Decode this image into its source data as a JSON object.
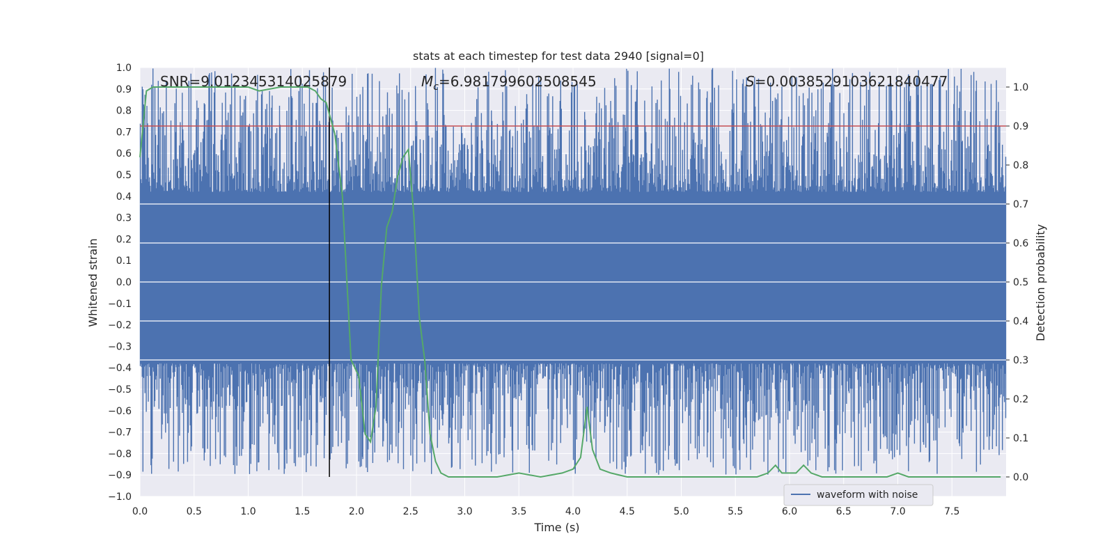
{
  "chart_data": {
    "type": "line",
    "title": "stats at each timestep for test data 2940 [signal=0]",
    "xlabel": "Time (s)",
    "ylabel": "Whitened strain",
    "y2label": "Detection probability",
    "xlim": [
      0.0,
      8.0
    ],
    "ylim": [
      -1.0,
      1.0
    ],
    "y2lim": [
      -0.05,
      1.05
    ],
    "x_ticks": [
      "0.0",
      "0.5",
      "1.0",
      "1.5",
      "2.0",
      "2.5",
      "3.0",
      "3.5",
      "4.0",
      "4.5",
      "5.0",
      "5.5",
      "6.0",
      "6.5",
      "7.0",
      "7.5"
    ],
    "y_ticks": [
      "1.0",
      "0.9",
      "0.8",
      "0.7",
      "0.6",
      "0.5",
      "0.4",
      "0.3",
      "0.2",
      "0.1",
      "0.0",
      "−0.1",
      "−0.2",
      "−0.3",
      "−0.4",
      "−0.5",
      "−0.6",
      "−0.7",
      "−0.8",
      "−0.9",
      "−1.0"
    ],
    "y2_ticks": [
      "1.0",
      "0.9",
      "0.8",
      "0.7",
      "0.6",
      "0.5",
      "0.4",
      "0.3",
      "0.2",
      "0.1",
      "0.0"
    ],
    "annotations": {
      "snr": "SNR=9.012345314025879",
      "mc_symbol": "M",
      "mc_sub": "c",
      "mc_value": "=6.981799602508545",
      "s_symbol": "S",
      "s_value": "=0.0038529103621840477"
    },
    "threshold": {
      "value": 0.9,
      "axis": "right",
      "color": "#c44e52"
    },
    "vertical_marker": {
      "x": 1.75,
      "color": "#000000"
    },
    "series": [
      {
        "name": "waveform with noise",
        "axis": "left",
        "color": "#4c72b0",
        "style": "dense noise, core |y| approx 0.4, peaks approx 1.0",
        "envelope": {
          "core_upper": 0.42,
          "core_lower": -0.38,
          "max": 1.0,
          "min": -0.9
        }
      },
      {
        "axis": "right",
        "color": "#55a868",
        "x": [
          0.0,
          0.06,
          0.12,
          0.5,
          1.0,
          1.1,
          1.3,
          1.55,
          1.62,
          1.67,
          1.72,
          1.75,
          1.8,
          1.87,
          1.95,
          2.02,
          2.08,
          2.13,
          2.18,
          2.23,
          2.28,
          2.33,
          2.38,
          2.43,
          2.48,
          2.53,
          2.58,
          2.63,
          2.68,
          2.73,
          2.78,
          2.85,
          3.0,
          3.3,
          3.5,
          3.7,
          3.9,
          4.0,
          4.07,
          4.13,
          4.18,
          4.25,
          4.35,
          4.5,
          5.0,
          5.5,
          5.7,
          5.8,
          5.87,
          5.93,
          6.0,
          6.06,
          6.13,
          6.2,
          6.3,
          6.6,
          6.9,
          7.0,
          7.1,
          7.25,
          7.5,
          7.95
        ],
        "values": [
          0.82,
          0.99,
          1.0,
          1.0,
          1.0,
          0.99,
          1.0,
          1.0,
          0.99,
          0.97,
          0.96,
          0.93,
          0.88,
          0.72,
          0.3,
          0.26,
          0.11,
          0.09,
          0.18,
          0.49,
          0.64,
          0.68,
          0.77,
          0.82,
          0.84,
          0.67,
          0.41,
          0.3,
          0.11,
          0.04,
          0.01,
          0.0,
          0.0,
          0.0,
          0.01,
          0.0,
          0.01,
          0.02,
          0.05,
          0.18,
          0.07,
          0.02,
          0.01,
          0.0,
          0.0,
          0.0,
          0.0,
          0.01,
          0.03,
          0.01,
          0.01,
          0.01,
          0.03,
          0.01,
          0.0,
          0.0,
          0.0,
          0.01,
          0.0,
          0.0,
          0.0,
          0.0
        ]
      }
    ],
    "legend": {
      "position": "lower right",
      "label": "waveform with noise"
    },
    "grid": true
  }
}
